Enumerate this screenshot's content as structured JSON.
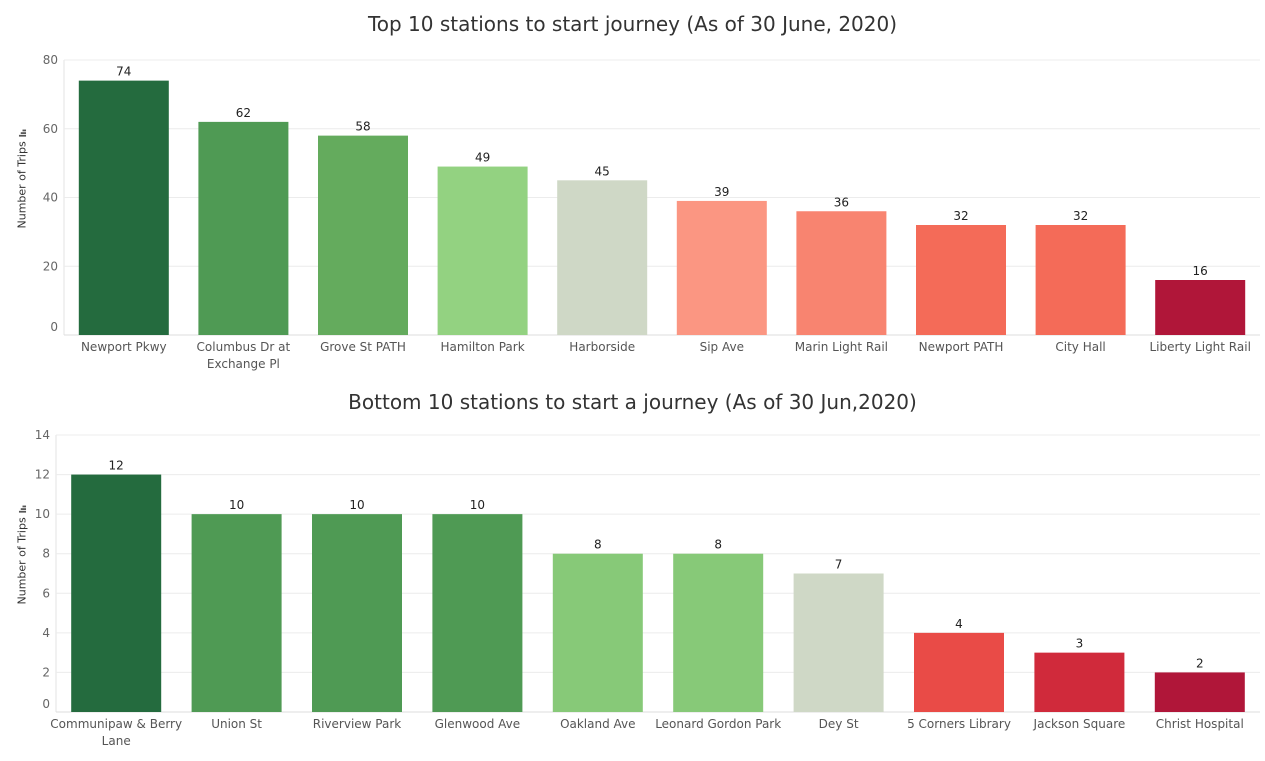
{
  "chart_data": [
    {
      "type": "bar",
      "title": "Top 10 stations to start journey (As of 30 June, 2020)",
      "xlabel": "",
      "ylabel": "Number of Trips",
      "ylim": [
        0,
        80
      ],
      "yticks": [
        0,
        20,
        40,
        60,
        80
      ],
      "grid": true,
      "categories": [
        "Newport Pkwy",
        "Columbus Dr at Exchange Pl",
        "Grove St PATH",
        "Hamilton Park",
        "Harborside",
        "Sip Ave",
        "Marin Light Rail",
        "Newport PATH",
        "City Hall",
        "Liberty Light Rail"
      ],
      "values": [
        74,
        62,
        58,
        49,
        45,
        39,
        36,
        32,
        32,
        16
      ],
      "colors": [
        "#246b3e",
        "#4f9a54",
        "#64ab5d",
        "#93d281",
        "#cfd8c6",
        "#fb9682",
        "#f88470",
        "#f46b58",
        "#f46b58",
        "#b01639"
      ],
      "sort_icon": "sort-descending-icon"
    },
    {
      "type": "bar",
      "title": "Bottom 10 stations to start a journey (As of 30 Jun,2020)",
      "xlabel": "",
      "ylabel": "Number of Trips",
      "ylim": [
        0,
        14
      ],
      "yticks": [
        0,
        2,
        4,
        6,
        8,
        10,
        12,
        14
      ],
      "grid": true,
      "categories": [
        "Communipaw & Berry Lane",
        "Union St",
        "Riverview Park",
        "Glenwood Ave",
        "Oakland Ave",
        "Leonard Gordon Park",
        "Dey St",
        "5 Corners Library",
        "Jackson Square",
        "Christ Hospital"
      ],
      "values": [
        12,
        10,
        10,
        10,
        8,
        8,
        7,
        4,
        3,
        2
      ],
      "colors": [
        "#246b3e",
        "#4f9a54",
        "#4f9a54",
        "#4f9a54",
        "#87c978",
        "#87c978",
        "#cfd8c6",
        "#e94b47",
        "#d02a3b",
        "#b01639"
      ],
      "sort_icon": "sort-descending-icon"
    }
  ]
}
